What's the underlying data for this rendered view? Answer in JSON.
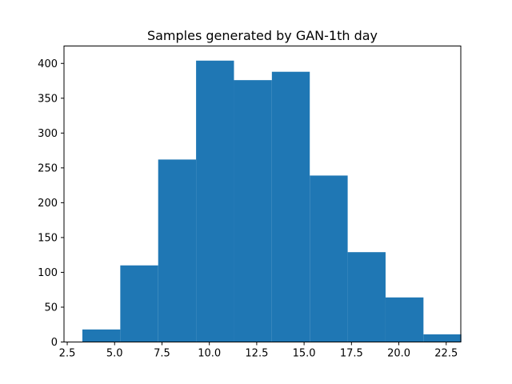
{
  "chart_data": {
    "type": "bar",
    "title": "Samples generated by GAN-1th day",
    "xlabel": "",
    "ylabel": "",
    "bin_edges": [
      3.3,
      5.3,
      7.3,
      9.3,
      11.3,
      13.3,
      15.3,
      17.3,
      19.3,
      21.3,
      23.3
    ],
    "values": [
      18,
      110,
      262,
      404,
      376,
      388,
      239,
      129,
      64,
      11
    ],
    "xlim": [
      2.33,
      23.27
    ],
    "ylim": [
      0,
      425
    ],
    "x_ticks": [
      2.5,
      5.0,
      7.5,
      10.0,
      12.5,
      15.0,
      17.5,
      20.0,
      22.5
    ],
    "x_tick_labels": [
      "2.5",
      "5.0",
      "7.5",
      "10.0",
      "12.5",
      "15.0",
      "17.5",
      "20.0",
      "22.5"
    ],
    "y_ticks": [
      0,
      50,
      100,
      150,
      200,
      250,
      300,
      350,
      400
    ],
    "y_tick_labels": [
      "0",
      "50",
      "100",
      "150",
      "200",
      "250",
      "300",
      "350",
      "400"
    ],
    "grid": false,
    "bar_color": "#1f77b4"
  }
}
